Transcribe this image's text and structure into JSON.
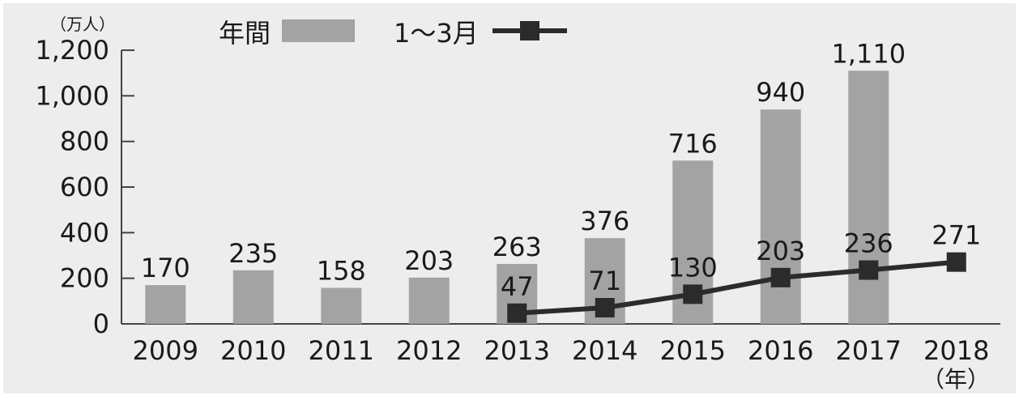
{
  "chart_data": {
    "type": "bar",
    "unit_label": "（万人）",
    "x_suffix": "（年）",
    "categories": [
      "2009",
      "2010",
      "2011",
      "2012",
      "2013",
      "2014",
      "2015",
      "2016",
      "2017",
      "2018"
    ],
    "ylim": [
      0,
      1200
    ],
    "yticks": [
      "0",
      "200",
      "400",
      "600",
      "800",
      "1,000",
      "1,200"
    ],
    "ytick_values": [
      0,
      200,
      400,
      600,
      800,
      1000,
      1200
    ],
    "grid": false,
    "legend_position": "top-left",
    "series": [
      {
        "name": "年間",
        "type": "bar",
        "color": "#a3a3a3",
        "values": [
          170,
          235,
          158,
          203,
          263,
          376,
          716,
          940,
          1110,
          null
        ],
        "labels": [
          "170",
          "235",
          "158",
          "203",
          "263",
          "376",
          "716",
          "940",
          "1,110",
          ""
        ]
      },
      {
        "name": "1～3月",
        "type": "line",
        "color": "#2b2b2b",
        "marker": "square",
        "values": [
          null,
          null,
          null,
          null,
          47,
          71,
          130,
          203,
          236,
          271
        ],
        "labels": [
          "",
          "",
          "",
          "",
          "47",
          "71",
          "130",
          "203",
          "236",
          "271"
        ]
      }
    ]
  }
}
